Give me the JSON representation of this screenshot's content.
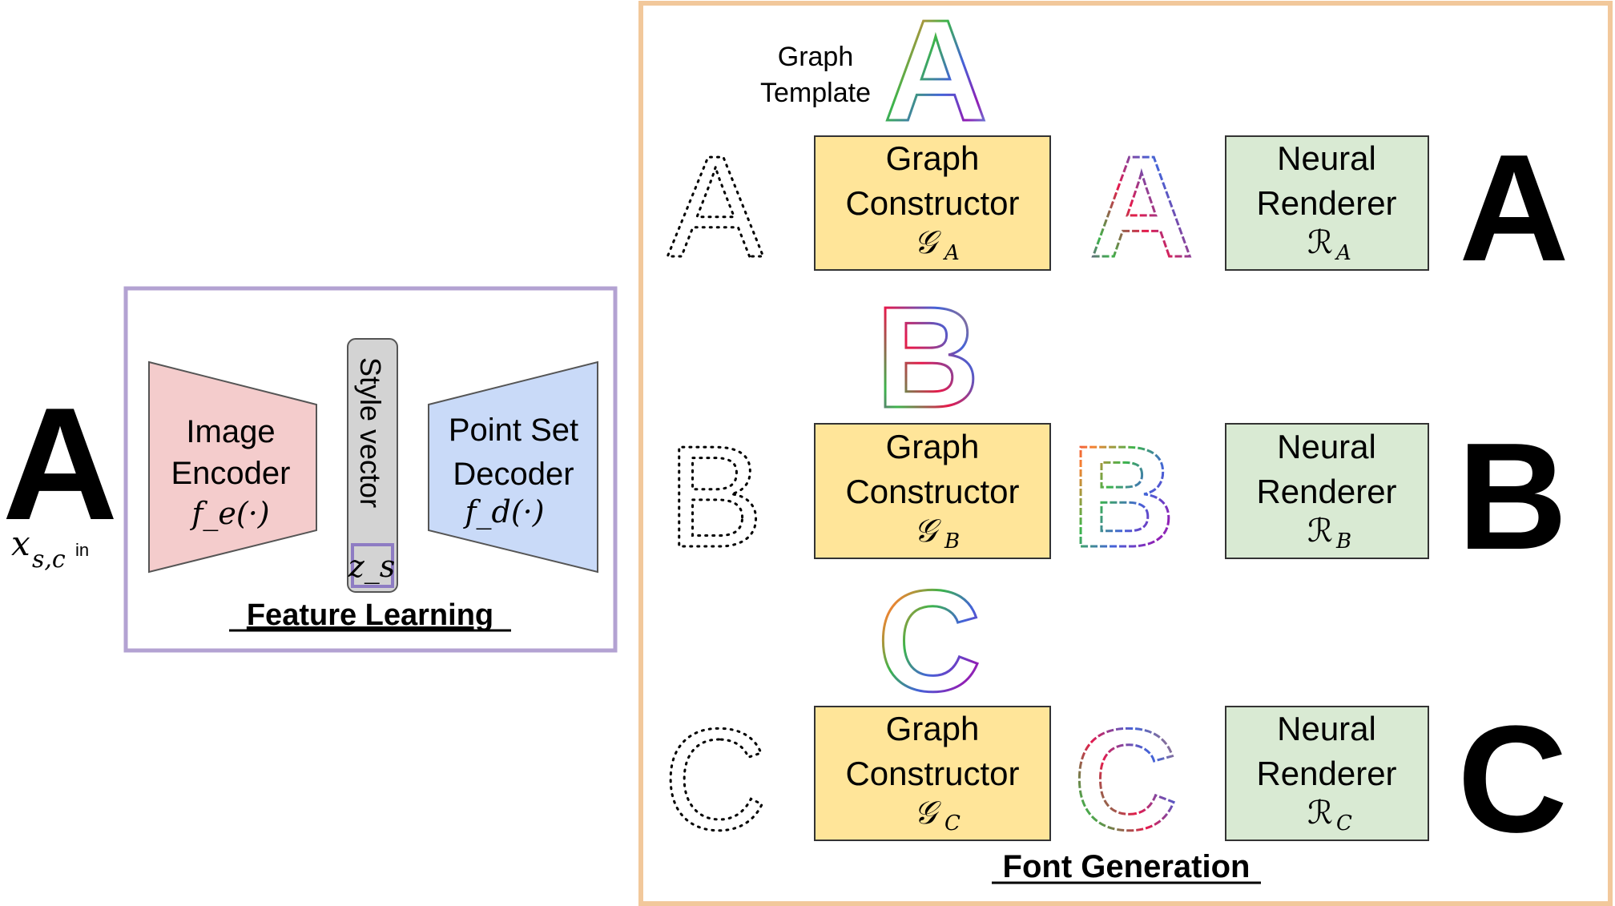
{
  "input_glyph": {
    "char": "A",
    "subscript_label": "x_{s,c^{in}}"
  },
  "feature_learning": {
    "title": "Feature Learning",
    "encoder": {
      "line1": "Image",
      "line2": "Encoder",
      "func": "f_e(·)"
    },
    "style_vector": {
      "label": "Style vector",
      "symbol": "z_s"
    },
    "decoder": {
      "line1": "Point Set",
      "line2": "Decoder",
      "func": "f_d(·)"
    }
  },
  "font_generation": {
    "title": "Font Generation",
    "graph_template": {
      "line1": "Graph",
      "line2": "Template"
    },
    "rows": [
      {
        "char": "A",
        "constructor": {
          "line1": "Graph",
          "line2": "Constructor",
          "symbol": "𝒢",
          "sub": "A"
        },
        "renderer": {
          "line1": "Neural",
          "line2": "Renderer",
          "symbol": "ℛ",
          "sub": "A"
        }
      },
      {
        "char": "B",
        "constructor": {
          "line1": "Graph",
          "line2": "Constructor",
          "symbol": "𝒢",
          "sub": "B"
        },
        "renderer": {
          "line1": "Neural",
          "line2": "Renderer",
          "symbol": "ℛ",
          "sub": "B"
        }
      },
      {
        "char": "C",
        "constructor": {
          "line1": "Graph",
          "line2": "Constructor",
          "symbol": "𝒢",
          "sub": "C"
        },
        "renderer": {
          "line1": "Neural",
          "line2": "Renderer",
          "symbol": "ℛ",
          "sub": "C"
        }
      }
    ]
  },
  "colors": {
    "feature_border": "#b3a2d2",
    "generation_border": "#f2c89b",
    "encoder_fill": "#f4cccc",
    "decoder_fill": "#c9daf8",
    "style_fill": "#d3d3d3",
    "constructor_fill": "#ffe599",
    "renderer_fill": "#d9ead3"
  }
}
